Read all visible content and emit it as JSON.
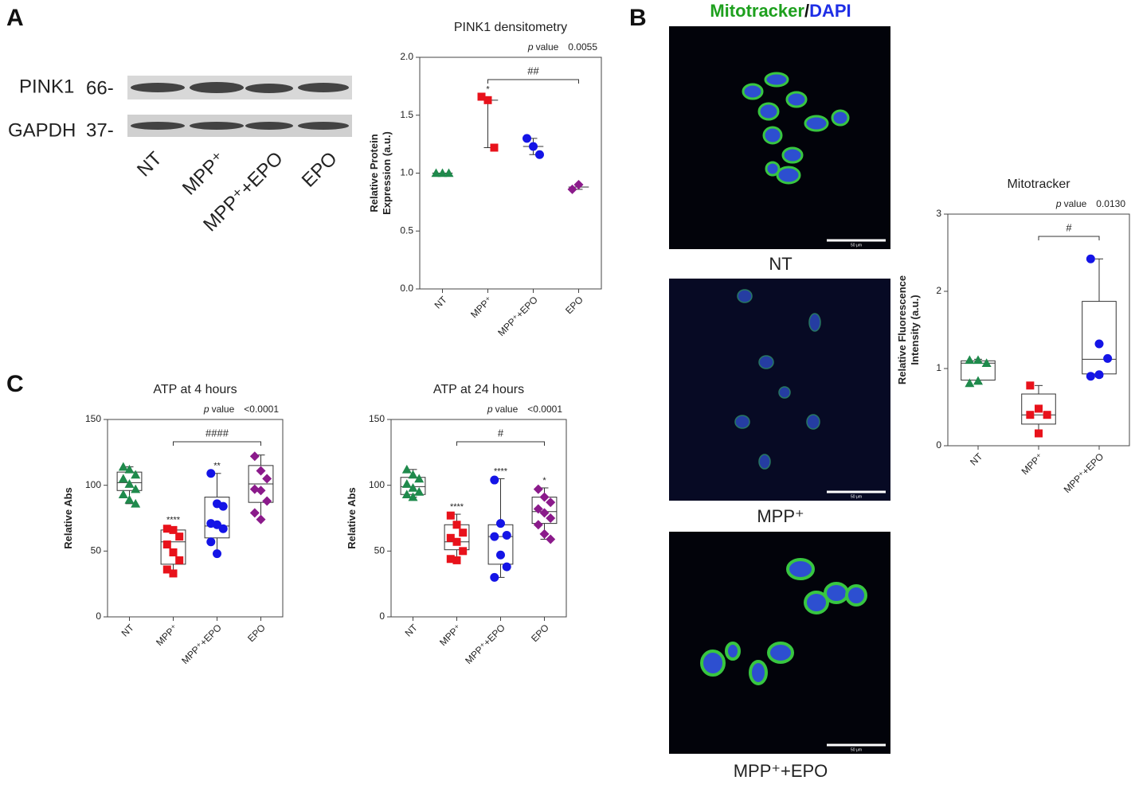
{
  "panels": {
    "a": "A",
    "b": "B",
    "c": "C"
  },
  "blot": {
    "bands": [
      {
        "name": "PINK1",
        "size": "66-"
      },
      {
        "name": "GAPDH",
        "size": "37-"
      }
    ],
    "lanes": [
      "NT",
      "MPP⁺",
      "MPP⁺+EPO",
      "EPO"
    ]
  },
  "micrographs": {
    "title_green": "Mitotracker",
    "separator": "/",
    "title_blue": "DAPI",
    "labels": [
      "NT",
      "MPP⁺",
      "MPP⁺+EPO"
    ],
    "scale_bar": "50 μm"
  },
  "chart_data": [
    {
      "type": "box",
      "title": "PINK1 densitometry",
      "ylabel": [
        "Relative Protein",
        "Expression (a.u.)"
      ],
      "categories": [
        "NT",
        "MPP⁺",
        "MPP⁺+EPO",
        "EPO"
      ],
      "groups": [
        {
          "color": "#1f8a4c",
          "marker": "triangle",
          "values": [
            1.0,
            1.0,
            1.0
          ],
          "box": {
            "min": 1.0,
            "median": 1.0,
            "max": 1.0
          }
        },
        {
          "color": "#e8121b",
          "marker": "square",
          "values": [
            1.66,
            1.63,
            1.22
          ],
          "box": {
            "min": 1.22,
            "median": 1.63,
            "max": 1.66
          }
        },
        {
          "color": "#1414e6",
          "marker": "circle",
          "values": [
            1.3,
            1.23,
            1.16
          ],
          "box": {
            "min": 1.16,
            "median": 1.23,
            "max": 1.3
          }
        },
        {
          "color": "#8b1a8b",
          "marker": "diamond",
          "values": [
            0.86,
            0.9
          ],
          "box": {
            "min": 0.86,
            "median": 0.88,
            "max": 0.9
          }
        }
      ],
      "ylim": [
        0,
        2
      ],
      "yticks": [
        {
          "value": 0,
          "label": "0.0"
        },
        {
          "value": 0.5,
          "label": "0.5"
        },
        {
          "value": 1,
          "label": "1.0"
        },
        {
          "value": 1.5,
          "label": "1.5"
        },
        {
          "value": 2,
          "label": "2.0"
        }
      ],
      "pvalue": {
        "p": "p",
        "label": "value",
        "number": "0.0055"
      },
      "stars": [
        null,
        "*",
        null,
        null
      ],
      "bracket": {
        "from": "MPP⁺",
        "to": "EPO",
        "label": "##"
      }
    },
    {
      "type": "box",
      "title": "Mitotracker",
      "ylabel": [
        "Relative Fluorescence",
        "Intensity (a.u.)"
      ],
      "categories": [
        "NT",
        "MPP⁺",
        "MPP⁺+EPO"
      ],
      "groups": [
        {
          "color": "#1f8a4c",
          "marker": "triangle",
          "values": [
            1.11,
            1.11,
            1.07,
            0.81,
            0.84
          ],
          "box": {
            "min": 0.81,
            "q1": 0.85,
            "median": 1.07,
            "q3": 1.1,
            "max": 1.12
          }
        },
        {
          "color": "#e8121b",
          "marker": "square",
          "values": [
            0.78,
            0.48,
            0.4,
            0.4,
            0.16
          ],
          "box": {
            "min": 0.16,
            "q1": 0.28,
            "median": 0.4,
            "q3": 0.67,
            "max": 0.78
          }
        },
        {
          "color": "#1414e6",
          "marker": "circle",
          "values": [
            2.42,
            1.32,
            1.13,
            0.9,
            0.92
          ],
          "box": {
            "min": 0.89,
            "q1": 0.93,
            "median": 1.12,
            "q3": 1.87,
            "max": 2.42
          }
        }
      ],
      "ylim": [
        0,
        3
      ],
      "yticks": [
        0,
        1,
        2,
        3
      ],
      "pvalue": {
        "p": "p",
        "label": "value",
        "number": "0.0130"
      },
      "stars": [
        null,
        null,
        null
      ],
      "bracket": {
        "from": "MPP⁺",
        "to": "MPP⁺+EPO",
        "label": "#"
      }
    },
    {
      "type": "box",
      "title": "ATP at 4 hours",
      "ylabel": [
        "Relative Abs"
      ],
      "categories": [
        "NT",
        "MPP⁺",
        "MPP⁺+EPO",
        "EPO"
      ],
      "groups": [
        {
          "color": "#1f8a4c",
          "marker": "triangle",
          "values": [
            114,
            112,
            108,
            105,
            101,
            97,
            93,
            89,
            86
          ],
          "box": {
            "min": 86,
            "q1": 96,
            "median": 102,
            "q3": 110,
            "max": 114
          }
        },
        {
          "color": "#e8121b",
          "marker": "square",
          "values": [
            67,
            66,
            61,
            55,
            49,
            43,
            36,
            33
          ],
          "box": {
            "min": 33,
            "q1": 40,
            "median": 57,
            "q3": 66,
            "max": 68
          }
        },
        {
          "color": "#1414e6",
          "marker": "circle",
          "values": [
            109,
            86,
            84,
            71,
            70,
            67,
            57,
            48
          ],
          "box": {
            "min": 47,
            "q1": 60,
            "median": 69,
            "q3": 91,
            "max": 109
          }
        },
        {
          "color": "#8b1a8b",
          "marker": "diamond",
          "values": [
            122,
            111,
            105,
            97,
            96,
            88,
            79,
            74
          ],
          "box": {
            "min": 74,
            "q1": 87,
            "median": 101,
            "q3": 115,
            "max": 123
          }
        }
      ],
      "ylim": [
        0,
        150
      ],
      "yticks": [
        0,
        50,
        100,
        150
      ],
      "pvalue": {
        "p": "p",
        "label": "value",
        "number": "<0.0001"
      },
      "stars": [
        null,
        "****",
        "**",
        null
      ],
      "bracket": {
        "from": "MPP⁺",
        "to": "EPO",
        "label": "####"
      }
    },
    {
      "type": "box",
      "title": "ATP at 24 hours",
      "ylabel": [
        "Relative Abs"
      ],
      "categories": [
        "NT",
        "MPP⁺",
        "MPP⁺+EPO",
        "EPO"
      ],
      "groups": [
        {
          "color": "#1f8a4c",
          "marker": "triangle",
          "values": [
            112,
            108,
            105,
            101,
            98,
            95,
            93,
            91
          ],
          "box": {
            "min": 91,
            "q1": 93,
            "median": 99,
            "q3": 106,
            "max": 112
          }
        },
        {
          "color": "#e8121b",
          "marker": "square",
          "values": [
            77,
            70,
            64,
            60,
            57,
            50,
            44,
            43
          ],
          "box": {
            "min": 43,
            "q1": 51,
            "median": 57,
            "q3": 70,
            "max": 78
          }
        },
        {
          "color": "#1414e6",
          "marker": "circle",
          "values": [
            104,
            71,
            62,
            61,
            47,
            38,
            30
          ],
          "box": {
            "min": 30,
            "q1": 40,
            "median": 61,
            "q3": 70,
            "max": 105
          }
        },
        {
          "color": "#8b1a8b",
          "marker": "diamond",
          "values": [
            97,
            91,
            87,
            82,
            79,
            75,
            70,
            63,
            59
          ],
          "box": {
            "min": 59,
            "q1": 71,
            "median": 80,
            "q3": 91,
            "max": 98
          }
        }
      ],
      "ylim": [
        0,
        150
      ],
      "yticks": [
        0,
        50,
        100,
        150
      ],
      "pvalue": {
        "p": "p",
        "label": "value",
        "number": "<0.0001"
      },
      "stars": [
        null,
        "****",
        "****",
        "*"
      ],
      "bracket": {
        "from": "MPP⁺",
        "to": "EPO",
        "label": "#"
      }
    }
  ]
}
